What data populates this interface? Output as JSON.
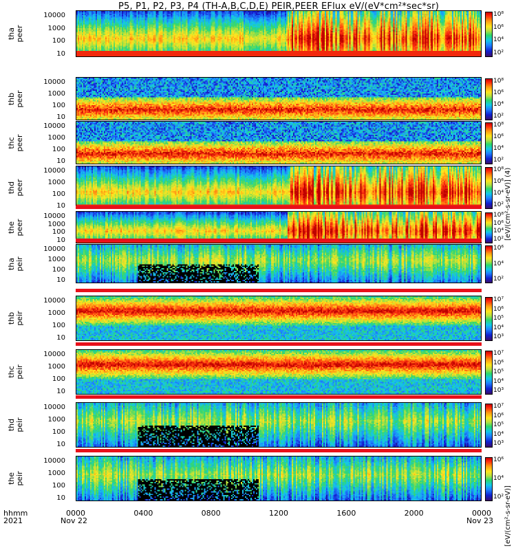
{
  "title": "P5, P1, P2, P3, P4 (TH-A,B,C,D,E) PEIR,PEER EFlux eV/(eV*cm²*sec*sr)",
  "colorbar_units_electron": "[eV/(cm²-s-sr-eV)] (4)",
  "colorbar_units_ion": "[eV/(cm²-s-sr-eV)]",
  "x_axis": {
    "row1_label": "hhmm",
    "row2_label": "2021",
    "ticks": [
      {
        "hhmm": "0000",
        "date": "Nov 22"
      },
      {
        "hhmm": "0400",
        "date": ""
      },
      {
        "hhmm": "0800",
        "date": ""
      },
      {
        "hhmm": "1200",
        "date": ""
      },
      {
        "hhmm": "1600",
        "date": ""
      },
      {
        "hhmm": "2000",
        "date": ""
      },
      {
        "hhmm": "0000",
        "date": "Nov 23"
      }
    ]
  },
  "chart_data": {
    "type": "heatmap",
    "x_range_hours": [
      0,
      24
    ],
    "y_scale": "log",
    "y_range_eV": [
      5,
      30000
    ],
    "y_ticks": [
      "10000",
      "1000",
      "100",
      "10"
    ],
    "colormap": "rainbow",
    "panels": [
      {
        "id": "tha-peer",
        "label": [
          "tha",
          "peer"
        ],
        "species": "electron",
        "cbar_ticks": [
          "10⁸",
          "10⁶",
          "10⁴",
          "10²"
        ],
        "profile": "sheath",
        "mode_bar": false
      },
      {
        "id": "thb-peer",
        "label": [
          "thb",
          "peer"
        ],
        "species": "electron",
        "cbar_ticks": [
          "10⁸",
          "10⁶",
          "10⁴",
          "10²"
        ],
        "profile": "band",
        "mode_bar": false
      },
      {
        "id": "thc-peer",
        "label": [
          "thc",
          "peer"
        ],
        "species": "electron",
        "cbar_ticks": [
          "10⁸",
          "10⁶",
          "10⁴",
          "10²"
        ],
        "profile": "band",
        "mode_bar": false
      },
      {
        "id": "thd-peer",
        "label": [
          "thd",
          "peer"
        ],
        "species": "electron",
        "cbar_ticks": [
          "10⁸",
          "10⁶",
          "10⁴",
          "10²"
        ],
        "profile": "sheath",
        "mode_bar": false
      },
      {
        "id": "the-peer",
        "label": [
          "the",
          "peer"
        ],
        "species": "electron",
        "cbar_ticks": [
          "10⁸",
          "10⁶",
          "10⁴",
          "10²"
        ],
        "profile": "sheath",
        "mode_bar": true
      },
      {
        "id": "tha-peir",
        "label": [
          "tha",
          "peir"
        ],
        "species": "ion",
        "cbar_ticks": [
          "10⁶",
          "10⁴",
          "10²"
        ],
        "profile": "ion-sheath",
        "mode_bar": true
      },
      {
        "id": "thb-peir",
        "label": [
          "thb",
          "peir"
        ],
        "species": "ion",
        "cbar_ticks": [
          "10⁷",
          "10⁶",
          "10⁵",
          "10⁴",
          "10³"
        ],
        "profile": "ion-band",
        "mode_bar": true
      },
      {
        "id": "thc-peir",
        "label": [
          "thc",
          "peir"
        ],
        "species": "ion",
        "cbar_ticks": [
          "10⁷",
          "10⁶",
          "10⁵",
          "10⁴",
          "10³"
        ],
        "profile": "ion-band",
        "mode_bar": true
      },
      {
        "id": "thd-peir",
        "label": [
          "thd",
          "peir"
        ],
        "species": "ion",
        "cbar_ticks": [
          "10⁷",
          "10⁶",
          "10⁵",
          "10⁴",
          "10³"
        ],
        "profile": "ion-sheath",
        "mode_bar": true
      },
      {
        "id": "the-peir",
        "label": [
          "the",
          "peir"
        ],
        "species": "ion",
        "cbar_ticks": [
          "10⁶",
          "10⁴",
          "10²"
        ],
        "profile": "ion-sheath",
        "mode_bar": true
      }
    ]
  }
}
